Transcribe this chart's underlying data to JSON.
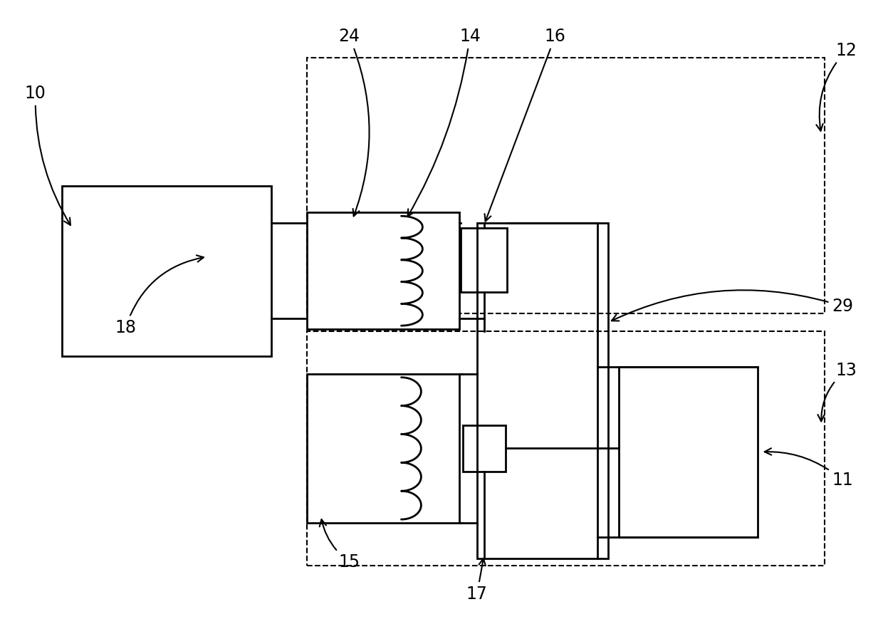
{
  "bg_color": "#ffffff",
  "line_color": "#000000",
  "fig_width": 12.4,
  "fig_height": 8.9,
  "lw": 2.0,
  "lw_dash": 1.5,
  "label_fs": 17
}
